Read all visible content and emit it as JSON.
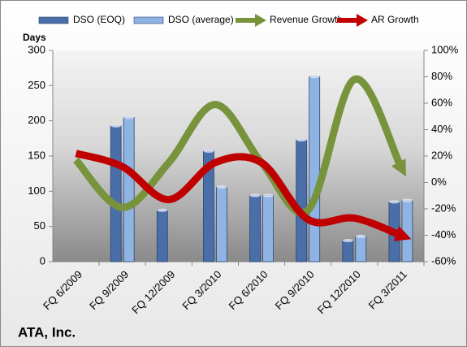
{
  "chart_data": {
    "type": "bar-line-combo",
    "title": "ATA, Inc.",
    "y_label": "Days",
    "categories": [
      "FQ 6/2009",
      "FQ 9/2009",
      "FQ 12/2009",
      "FQ 3/2010",
      "FQ 6/2010",
      "FQ 9/2010",
      "FQ 12/2010",
      "FQ 3/2011"
    ],
    "series": [
      {
        "name": "DSO (EOQ)",
        "type": "bar",
        "color": "#4a6ea8",
        "values": [
          null,
          193,
          73,
          157,
          94,
          173,
          30,
          85
        ]
      },
      {
        "name": "DSO (average)",
        "type": "bar",
        "color": "#8fb4e3",
        "values": [
          null,
          205,
          null,
          106,
          94,
          263,
          36,
          87
        ]
      },
      {
        "name": "Revenue Growth",
        "type": "line",
        "axis": "y2",
        "color": "#77933c",
        "values": [
          17,
          -19,
          15,
          59,
          15,
          -21,
          78,
          12
        ]
      },
      {
        "name": "AR Growth",
        "type": "line",
        "axis": "y2",
        "color": "#c00000",
        "values": [
          22,
          12,
          -13,
          15,
          15,
          -28,
          -27,
          -40
        ]
      }
    ],
    "ylim": [
      0,
      300
    ],
    "yticks": [
      0,
      50,
      100,
      150,
      200,
      250,
      300
    ],
    "y2lim": [
      -60,
      100
    ],
    "y2ticks": [
      {
        "value": -60,
        "label": "-60%"
      },
      {
        "value": -40,
        "label": "-40%"
      },
      {
        "value": -20,
        "label": "-20%"
      },
      {
        "value": 0,
        "label": "0%"
      },
      {
        "value": 20,
        "label": "20%"
      },
      {
        "value": 40,
        "label": "40%"
      },
      {
        "value": 60,
        "label": "60%"
      },
      {
        "value": 80,
        "label": "80%"
      },
      {
        "value": 100,
        "label": "100%"
      }
    ]
  }
}
